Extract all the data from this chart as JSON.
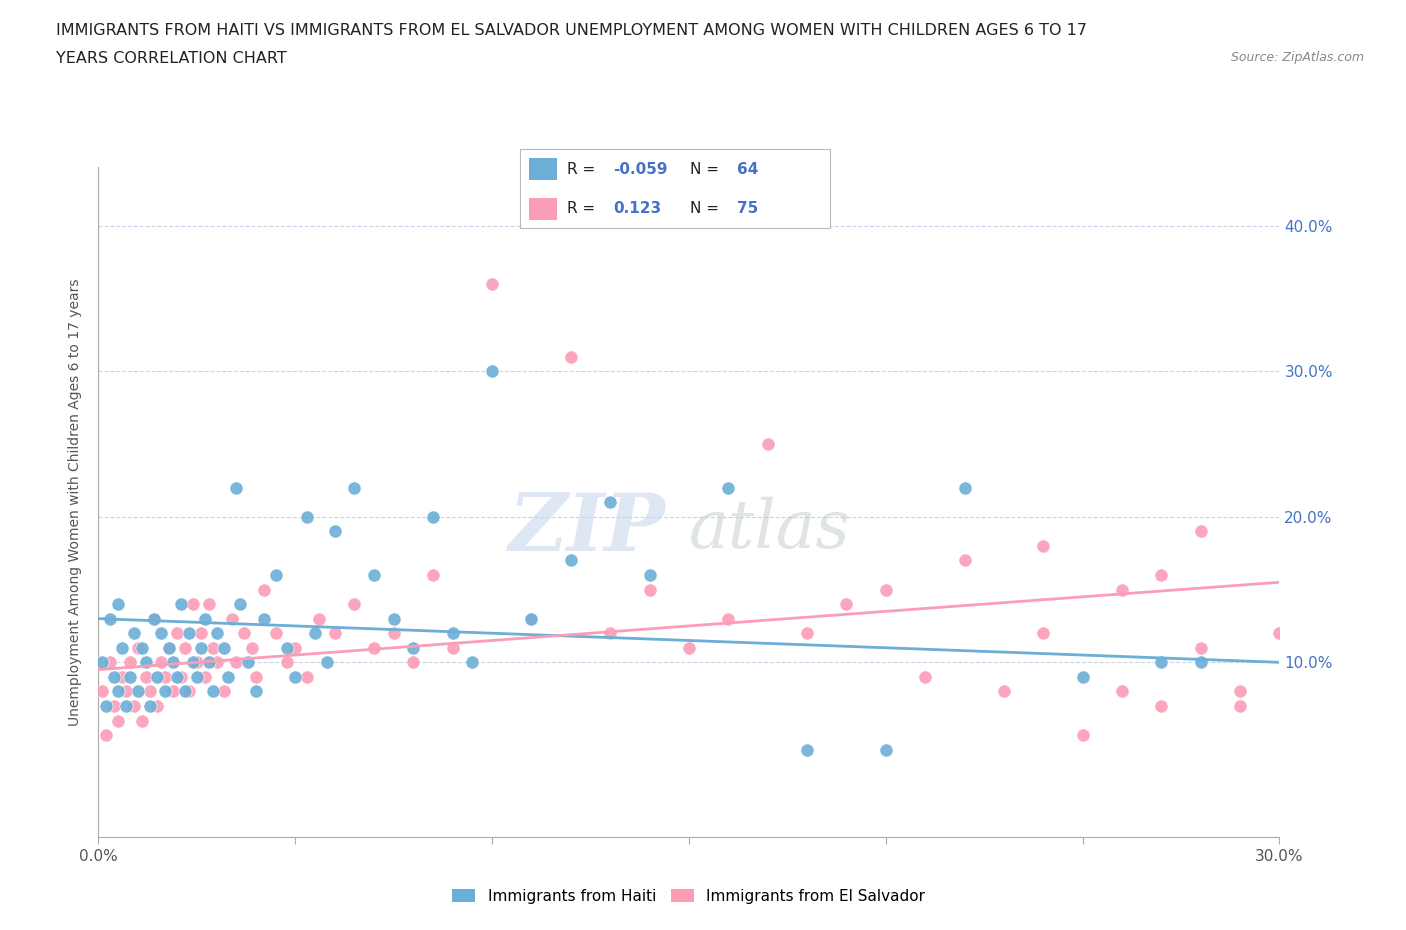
{
  "title_line1": "IMMIGRANTS FROM HAITI VS IMMIGRANTS FROM EL SALVADOR UNEMPLOYMENT AMONG WOMEN WITH CHILDREN AGES 6 TO 17",
  "title_line2": "YEARS CORRELATION CHART",
  "source_text": "Source: ZipAtlas.com",
  "ylabel": "Unemployment Among Women with Children Ages 6 to 17 years",
  "xlim": [
    0.0,
    0.3
  ],
  "ylim": [
    -0.02,
    0.44
  ],
  "xtick_values": [
    0.0,
    0.05,
    0.1,
    0.15,
    0.2,
    0.25,
    0.3
  ],
  "xtick_labels": [
    "0.0%",
    "",
    "",
    "",
    "",
    "",
    "30.0%"
  ],
  "ytick_values": [
    0.1,
    0.2,
    0.3,
    0.4
  ],
  "ytick_labels": [
    "10.0%",
    "20.0%",
    "30.0%",
    "40.0%"
  ],
  "haiti_color": "#6baed6",
  "salvador_color": "#fc9db7",
  "haiti_trend_start": 0.13,
  "haiti_trend_end": 0.1,
  "salvador_trend_start": 0.095,
  "salvador_trend_end": 0.155,
  "haiti_scatter_x": [
    0.001,
    0.002,
    0.003,
    0.004,
    0.005,
    0.005,
    0.006,
    0.007,
    0.008,
    0.009,
    0.01,
    0.011,
    0.012,
    0.013,
    0.014,
    0.015,
    0.016,
    0.017,
    0.018,
    0.019,
    0.02,
    0.021,
    0.022,
    0.023,
    0.024,
    0.025,
    0.026,
    0.027,
    0.028,
    0.029,
    0.03,
    0.032,
    0.033,
    0.035,
    0.036,
    0.038,
    0.04,
    0.042,
    0.045,
    0.048,
    0.05,
    0.053,
    0.055,
    0.058,
    0.06,
    0.065,
    0.07,
    0.075,
    0.08,
    0.085,
    0.09,
    0.095,
    0.1,
    0.11,
    0.12,
    0.13,
    0.14,
    0.16,
    0.18,
    0.2,
    0.22,
    0.25,
    0.27,
    0.28
  ],
  "haiti_scatter_y": [
    0.1,
    0.07,
    0.13,
    0.09,
    0.08,
    0.14,
    0.11,
    0.07,
    0.09,
    0.12,
    0.08,
    0.11,
    0.1,
    0.07,
    0.13,
    0.09,
    0.12,
    0.08,
    0.11,
    0.1,
    0.09,
    0.14,
    0.08,
    0.12,
    0.1,
    0.09,
    0.11,
    0.13,
    0.1,
    0.08,
    0.12,
    0.11,
    0.09,
    0.22,
    0.14,
    0.1,
    0.08,
    0.13,
    0.16,
    0.11,
    0.09,
    0.2,
    0.12,
    0.1,
    0.19,
    0.22,
    0.16,
    0.13,
    0.11,
    0.2,
    0.12,
    0.1,
    0.3,
    0.13,
    0.17,
    0.21,
    0.16,
    0.22,
    0.04,
    0.04,
    0.22,
    0.09,
    0.1,
    0.1
  ],
  "salvador_scatter_x": [
    0.001,
    0.002,
    0.003,
    0.004,
    0.005,
    0.006,
    0.007,
    0.008,
    0.009,
    0.01,
    0.011,
    0.012,
    0.013,
    0.014,
    0.015,
    0.016,
    0.017,
    0.018,
    0.019,
    0.02,
    0.021,
    0.022,
    0.023,
    0.024,
    0.025,
    0.026,
    0.027,
    0.028,
    0.029,
    0.03,
    0.032,
    0.034,
    0.035,
    0.037,
    0.039,
    0.04,
    0.042,
    0.045,
    0.048,
    0.05,
    0.053,
    0.056,
    0.06,
    0.065,
    0.07,
    0.075,
    0.08,
    0.085,
    0.09,
    0.1,
    0.11,
    0.12,
    0.13,
    0.14,
    0.15,
    0.16,
    0.17,
    0.18,
    0.19,
    0.2,
    0.21,
    0.22,
    0.23,
    0.24,
    0.25,
    0.26,
    0.27,
    0.28,
    0.29,
    0.3,
    0.24,
    0.26,
    0.27,
    0.28,
    0.29
  ],
  "salvador_scatter_y": [
    0.08,
    0.05,
    0.1,
    0.07,
    0.06,
    0.09,
    0.08,
    0.1,
    0.07,
    0.11,
    0.06,
    0.09,
    0.08,
    0.13,
    0.07,
    0.1,
    0.09,
    0.11,
    0.08,
    0.12,
    0.09,
    0.11,
    0.08,
    0.14,
    0.1,
    0.12,
    0.09,
    0.14,
    0.11,
    0.1,
    0.08,
    0.13,
    0.1,
    0.12,
    0.11,
    0.09,
    0.15,
    0.12,
    0.1,
    0.11,
    0.09,
    0.13,
    0.12,
    0.14,
    0.11,
    0.12,
    0.1,
    0.16,
    0.11,
    0.36,
    0.13,
    0.31,
    0.12,
    0.15,
    0.11,
    0.13,
    0.25,
    0.12,
    0.14,
    0.15,
    0.09,
    0.17,
    0.08,
    0.12,
    0.05,
    0.15,
    0.07,
    0.19,
    0.07,
    0.12,
    0.18,
    0.08,
    0.16,
    0.11,
    0.08
  ]
}
